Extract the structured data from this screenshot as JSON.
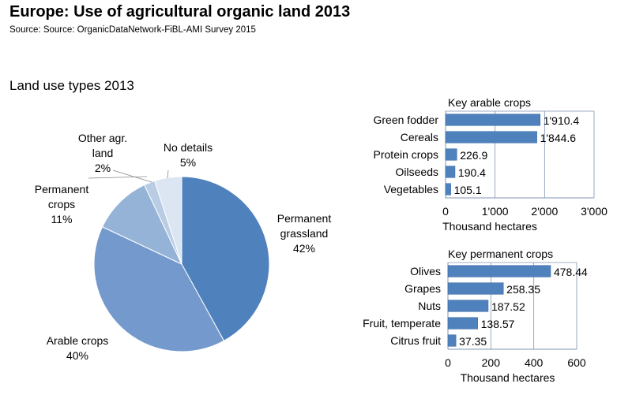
{
  "title": "Europe: Use of agricultural organic land 2013",
  "subtitle": "Source: Source: OrganicDataNetwork-FiBL-AMI Survey 2015",
  "chart_data": [
    {
      "type": "pie",
      "title": "Land use types 2013",
      "slices": [
        {
          "label": "Permanent grassland",
          "label_lines": [
            "Permanent",
            "grassland"
          ],
          "value": 42,
          "value_label": "42%",
          "color": "#4f81bd"
        },
        {
          "label": "Arable crops",
          "label_lines": [
            "Arable crops"
          ],
          "value": 40,
          "value_label": "40%",
          "color": "#7399cd"
        },
        {
          "label": "Permanent crops",
          "label_lines": [
            "Permanent",
            "crops"
          ],
          "value": 11,
          "value_label": "11%",
          "color": "#95b3d7"
        },
        {
          "label": "Other agr. land",
          "label_lines": [
            "Other agr.",
            "land"
          ],
          "value": 2,
          "value_label": "2%",
          "color": "#b8cce4"
        },
        {
          "label": "No details",
          "label_lines": [
            "No details"
          ],
          "value": 5,
          "value_label": "5%",
          "color": "#dce6f2"
        }
      ]
    },
    {
      "type": "bar",
      "orientation": "horizontal",
      "title": "Key arable crops",
      "xlabel": "Thousand hectares",
      "categories": [
        "Green fodder",
        "Cereals",
        "Protein crops",
        "Oilseeds",
        "Vegetables"
      ],
      "values": [
        1910.4,
        1844.6,
        226.9,
        190.4,
        105.1
      ],
      "value_labels": [
        "1'910.4",
        "1'844.6",
        "226.9",
        "190.4",
        "105.1"
      ],
      "xlim": [
        0,
        3000
      ],
      "ticks": [
        0,
        1000,
        2000,
        3000
      ],
      "tick_labels": [
        "0",
        "1'000",
        "2'000",
        "3'000"
      ],
      "grid": true,
      "color": "#4f81bd"
    },
    {
      "type": "bar",
      "orientation": "horizontal",
      "title": "Key permanent crops",
      "xlabel": "Thousand hectares",
      "categories": [
        "Olives",
        "Grapes",
        "Nuts",
        "Fruit, temperate",
        "Citrus fruit"
      ],
      "values": [
        478.44,
        258.35,
        187.52,
        138.57,
        37.35
      ],
      "value_labels": [
        "478.44",
        "258.35",
        "187.52",
        "138.57",
        "37.35"
      ],
      "xlim": [
        0,
        600
      ],
      "ticks": [
        0,
        200,
        400,
        600
      ],
      "tick_labels": [
        "0",
        "200",
        "400",
        "600"
      ],
      "grid": true,
      "color": "#4f81bd"
    }
  ]
}
